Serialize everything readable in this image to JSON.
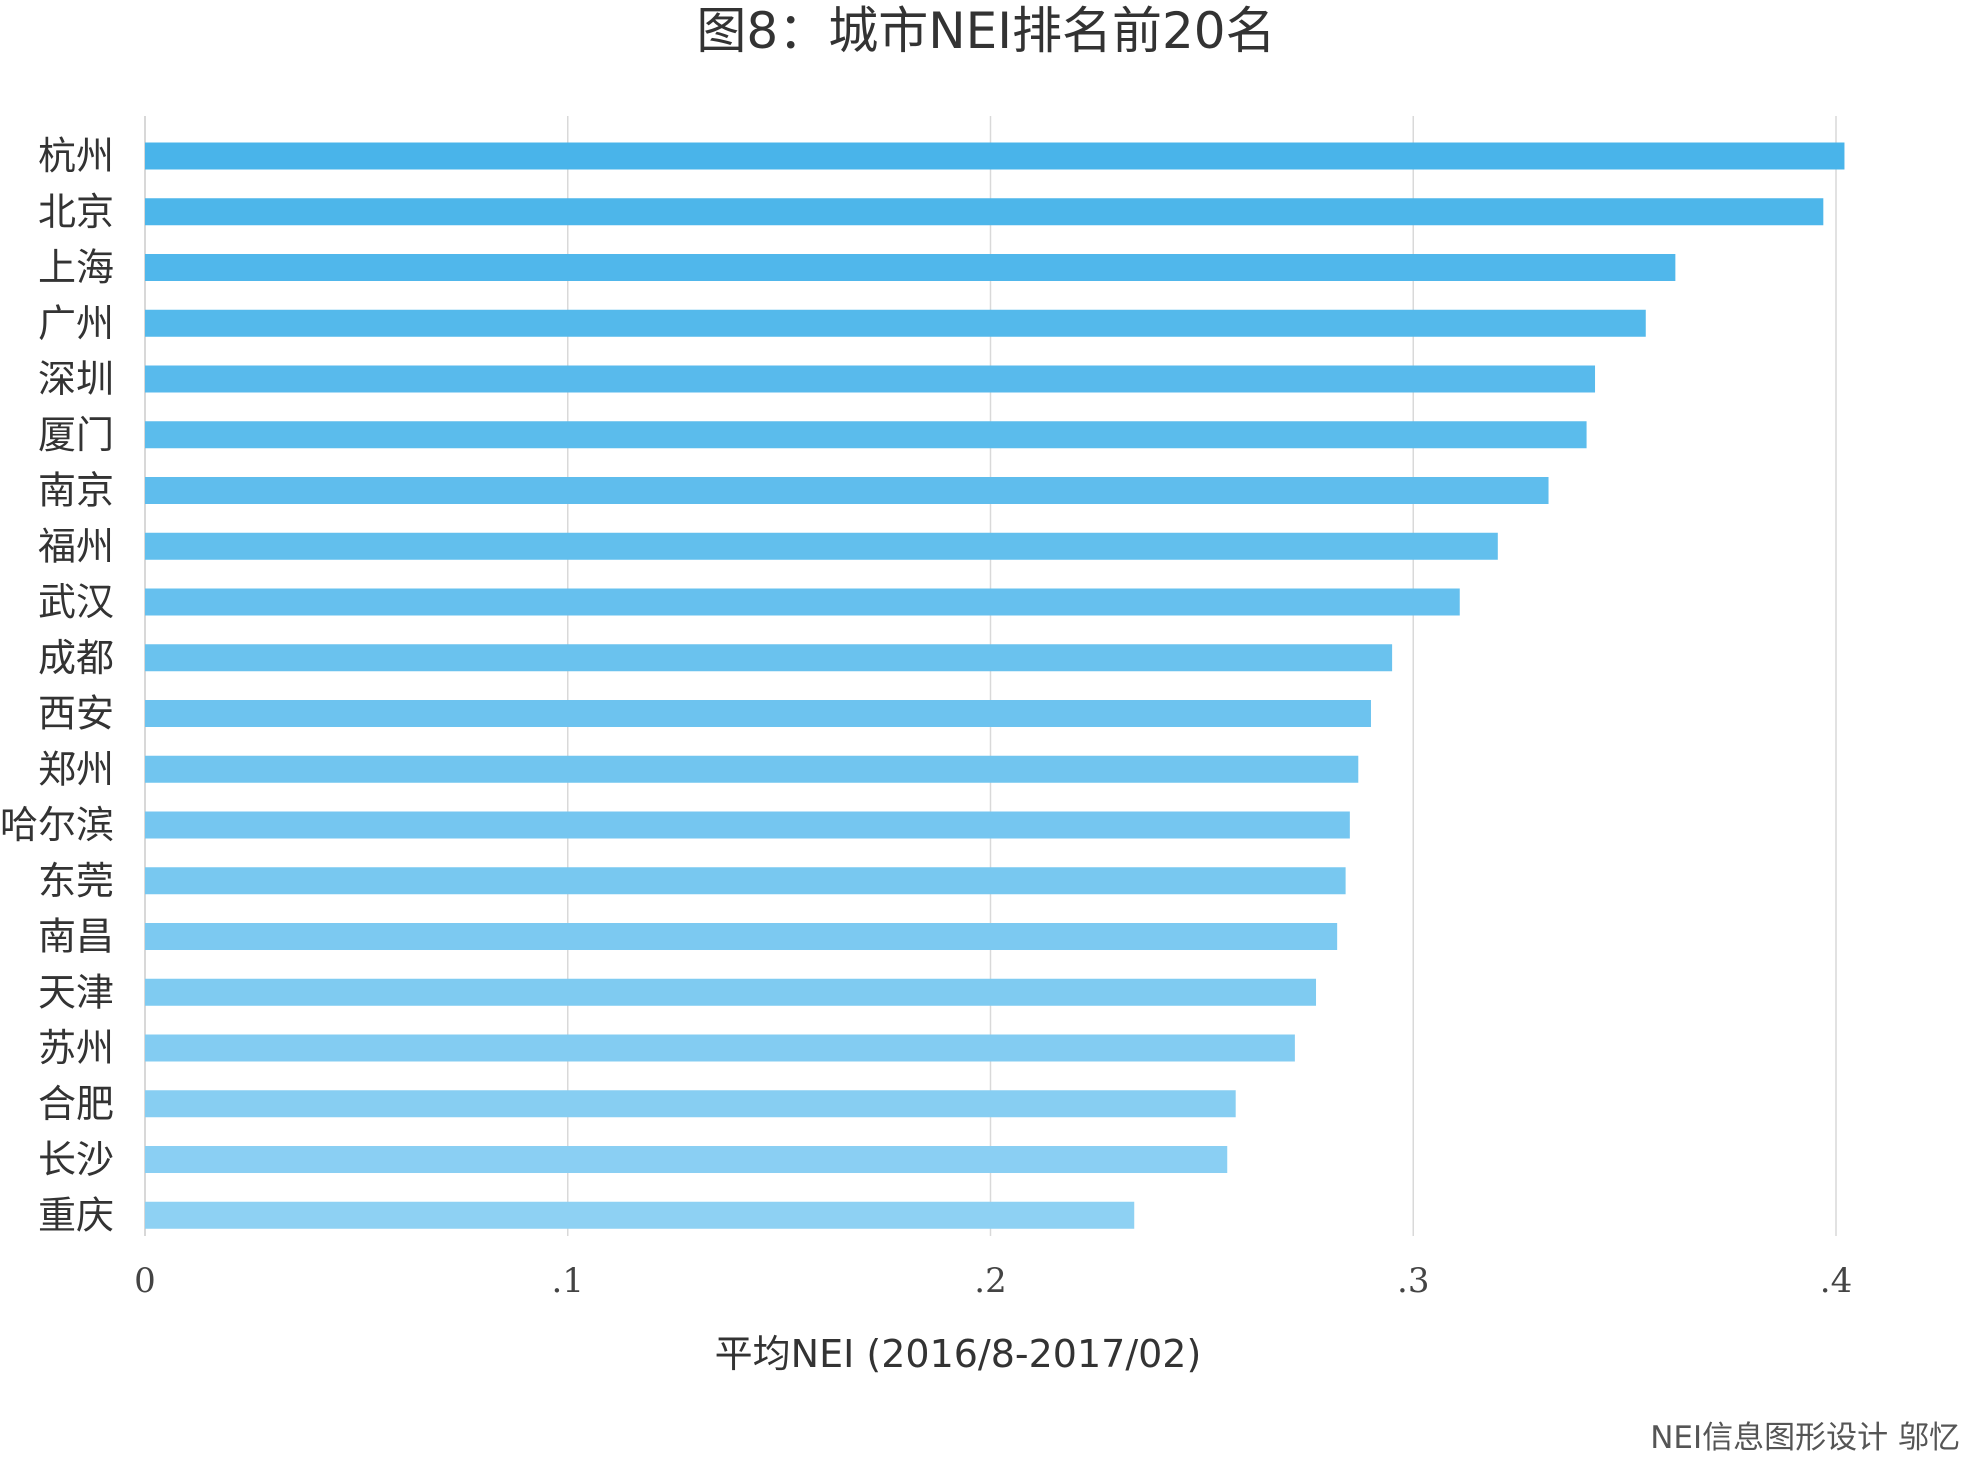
{
  "chart_data": {
    "type": "bar",
    "orientation": "horizontal",
    "title": "图8：城市NEI排名前20名",
    "xlabel": "平均NEI (2016/8-2017/02)",
    "ylabel": "",
    "xlim": [
      0,
      0.4
    ],
    "xticks": [
      0,
      0.1,
      0.2,
      0.3,
      0.4
    ],
    "xtick_labels": [
      "0",
      ".1",
      ".2",
      ".3",
      ".4"
    ],
    "grid": "vertical",
    "legend": "none",
    "categories": [
      "杭州",
      "北京",
      "上海",
      "广州",
      "深圳",
      "厦门",
      "南京",
      "福州",
      "武汉",
      "成都",
      "西安",
      "郑州",
      "哈尔滨",
      "东莞",
      "南昌",
      "天津",
      "苏州",
      "合肥",
      "长沙",
      "重庆"
    ],
    "values": [
      0.402,
      0.397,
      0.362,
      0.355,
      0.343,
      0.341,
      0.332,
      0.32,
      0.311,
      0.295,
      0.29,
      0.287,
      0.285,
      0.284,
      0.282,
      0.277,
      0.272,
      0.258,
      0.256,
      0.234
    ],
    "colors": {
      "bar_top": "#49b4ea",
      "bar_bottom": "#8ed1f3",
      "grid": "#d9d9d9",
      "text": "#333333"
    }
  },
  "credit": "NEI信息图形设计 邬忆"
}
